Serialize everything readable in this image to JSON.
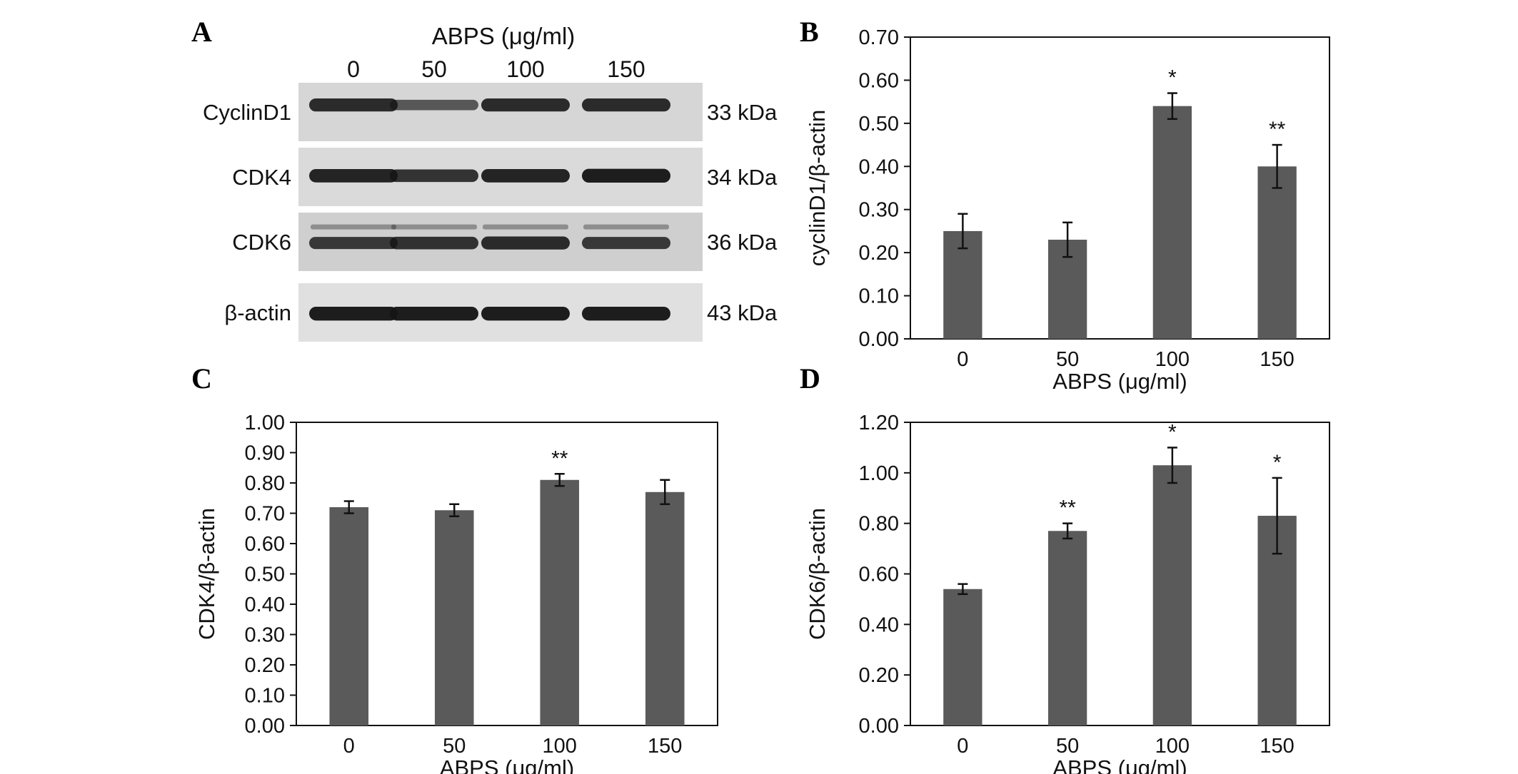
{
  "blot": {
    "panel_label": "A",
    "header": "ABPS (μg/ml)",
    "lanes": [
      "0",
      "50",
      "100",
      "150"
    ],
    "rows": [
      {
        "protein": "CyclinD1",
        "size": "33 kDa",
        "intensity": [
          0.85,
          0.55,
          0.85,
          0.85
        ]
      },
      {
        "protein": "CDK4",
        "size": "34 kDa",
        "intensity": [
          0.9,
          0.8,
          0.9,
          0.95
        ]
      },
      {
        "protein": "CDK6",
        "size": "36 kDa",
        "intensity": [
          0.75,
          0.8,
          0.85,
          0.75
        ]
      },
      {
        "protein": "β-actin",
        "size": "43 kDa",
        "intensity": [
          0.95,
          0.95,
          0.95,
          0.95
        ]
      }
    ]
  },
  "colors": {
    "bar": "#5a5a5a",
    "axis": "#111111",
    "blot_bg": "#d6d6d6",
    "band": "#151515"
  },
  "chart_data": [
    {
      "panel_label": "B",
      "type": "bar",
      "categories": [
        "0",
        "50",
        "100",
        "150"
      ],
      "values": [
        0.25,
        0.23,
        0.54,
        0.4
      ],
      "errors": [
        0.04,
        0.04,
        0.03,
        0.05
      ],
      "annotations": [
        "",
        "",
        "*",
        "**"
      ],
      "xlabel": "ABPS (μg/ml)",
      "ylabel": "cyclinD1/β-actin",
      "ylim": [
        0,
        0.7
      ],
      "yticks": [
        "0.00",
        "0.10",
        "0.20",
        "0.30",
        "0.40",
        "0.50",
        "0.60",
        "0.70"
      ],
      "grid": false
    },
    {
      "panel_label": "C",
      "type": "bar",
      "categories": [
        "0",
        "50",
        "100",
        "150"
      ],
      "values": [
        0.72,
        0.71,
        0.81,
        0.77
      ],
      "errors": [
        0.02,
        0.02,
        0.02,
        0.04
      ],
      "annotations": [
        "",
        "",
        "**",
        ""
      ],
      "xlabel": "ABPS (μg/ml)",
      "ylabel": "CDK4/β-actin",
      "ylim": [
        0,
        1.0
      ],
      "yticks": [
        "0.00",
        "0.10",
        "0.20",
        "0.30",
        "0.40",
        "0.50",
        "0.60",
        "0.70",
        "0.80",
        "0.90",
        "1.00"
      ],
      "grid": false
    },
    {
      "panel_label": "D",
      "type": "bar",
      "categories": [
        "0",
        "50",
        "100",
        "150"
      ],
      "values": [
        0.54,
        0.77,
        1.03,
        0.83
      ],
      "errors": [
        0.02,
        0.03,
        0.07,
        0.15
      ],
      "annotations": [
        "",
        "**",
        "*",
        "*"
      ],
      "xlabel": "ABPS (μg/ml)",
      "ylabel": "CDK6/β-actin",
      "ylim": [
        0,
        1.2
      ],
      "yticks": [
        "0.00",
        "0.20",
        "0.40",
        "0.60",
        "0.80",
        "1.00",
        "1.20"
      ],
      "grid": false
    }
  ]
}
